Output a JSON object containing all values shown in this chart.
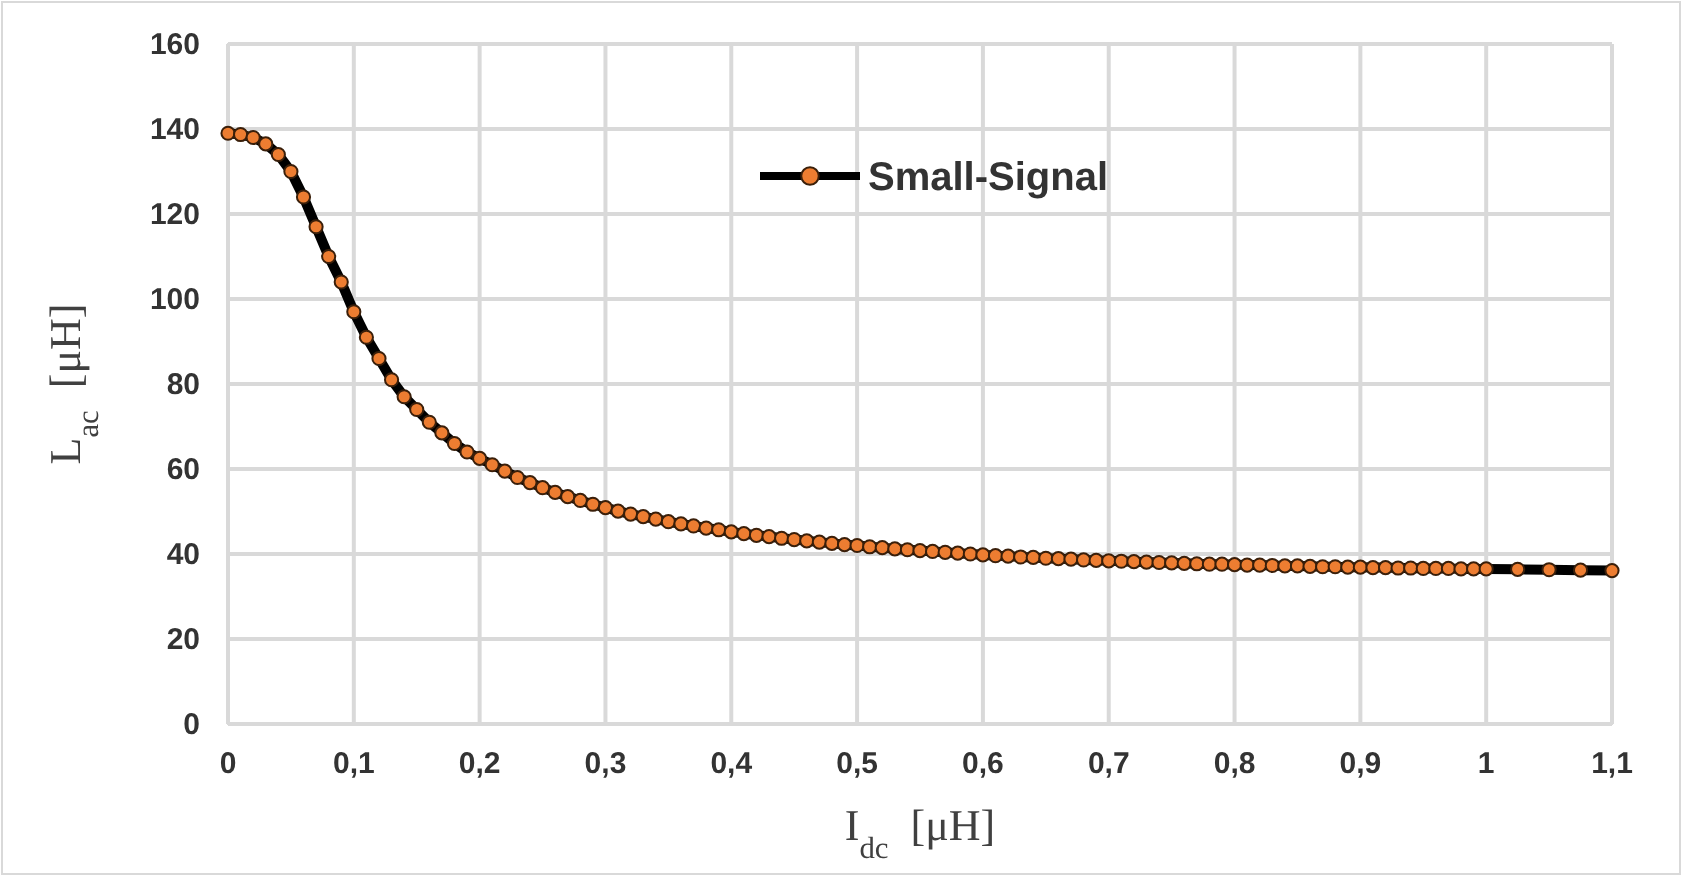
{
  "chart_data": {
    "type": "line",
    "xlabel": "I$_{dc}$  [μH]",
    "ylabel": "L$_{ac}$  [μH]",
    "xlim": [
      0,
      1.1
    ],
    "ylim": [
      0,
      160
    ],
    "xticks": [
      0,
      {
        "value": 0.1,
        "label": "0,1"
      },
      {
        "value": 0.2,
        "label": "0,2"
      },
      {
        "value": 0.3,
        "label": "0,3"
      },
      {
        "value": 0.4,
        "label": "0,4"
      },
      {
        "value": 0.5,
        "label": "0,5"
      },
      {
        "value": 0.6,
        "label": "0,6"
      },
      {
        "value": 0.7,
        "label": "0,7"
      },
      {
        "value": 0.8,
        "label": "0,8"
      },
      {
        "value": 0.9,
        "label": "0,9"
      },
      1,
      {
        "value": 1.1,
        "label": "1,1"
      }
    ],
    "yticks": [
      0,
      20,
      40,
      60,
      80,
      100,
      120,
      140,
      160
    ],
    "grid": true,
    "legend": "top",
    "marker": "circle",
    "line_style": "solid",
    "x": [
      0,
      0.01,
      0.02,
      0.03,
      0.04,
      0.05,
      0.06,
      0.07,
      0.08,
      0.09,
      0.1,
      0.11,
      0.12,
      0.13,
      0.14,
      0.15,
      0.16,
      0.17,
      0.18,
      0.19,
      0.2,
      0.21,
      0.22,
      0.23,
      0.24,
      0.25,
      0.26,
      0.27,
      0.28,
      0.29,
      0.3,
      0.31,
      0.32,
      0.33,
      0.34,
      0.35,
      0.36,
      0.37,
      0.38,
      0.39,
      0.4,
      0.41,
      0.42,
      0.43,
      0.44,
      0.45,
      0.46,
      0.47,
      0.48,
      0.49,
      0.5,
      0.51,
      0.52,
      0.53,
      0.54,
      0.55,
      0.56,
      0.57,
      0.58,
      0.59,
      0.6,
      0.61,
      0.62,
      0.63,
      0.64,
      0.65,
      0.66,
      0.67,
      0.68,
      0.69,
      0.7,
      0.71,
      0.72,
      0.73,
      0.74,
      0.75,
      0.76,
      0.77,
      0.78,
      0.79,
      0.8,
      0.81,
      0.82,
      0.83,
      0.84,
      0.85,
      0.86,
      0.87,
      0.88,
      0.89,
      0.9,
      0.91,
      0.92,
      0.93,
      0.94,
      0.95,
      0.96,
      0.97,
      0.98,
      0.99,
      1,
      1.025,
      1.05,
      1.075,
      1.1
    ],
    "series": [
      {
        "name": "Small-Signal",
        "color": "#ed7d31",
        "values": [
          139,
          138.7,
          138,
          136.5,
          134,
          130,
          124,
          117,
          110,
          104,
          97,
          91,
          86,
          81,
          77,
          74,
          71,
          68.5,
          66,
          64,
          62.5,
          61,
          59.5,
          58,
          56.8,
          55.6,
          54.5,
          53.5,
          52.6,
          51.7,
          50.9,
          50.1,
          49.4,
          48.8,
          48.2,
          47.6,
          47.1,
          46.6,
          46.1,
          45.7,
          45.2,
          44.8,
          44.4,
          44.1,
          43.7,
          43.4,
          43.1,
          42.8,
          42.5,
          42.2,
          42,
          41.7,
          41.5,
          41.2,
          41,
          40.8,
          40.6,
          40.4,
          40.2,
          40,
          39.8,
          39.6,
          39.5,
          39.3,
          39.2,
          39,
          38.9,
          38.8,
          38.6,
          38.5,
          38.4,
          38.3,
          38.2,
          38.1,
          38,
          37.9,
          37.8,
          37.7,
          37.6,
          37.6,
          37.5,
          37.4,
          37.4,
          37.3,
          37.2,
          37.2,
          37.1,
          37,
          37,
          36.9,
          36.9,
          36.8,
          36.8,
          36.7,
          36.7,
          36.6,
          36.6,
          36.6,
          36.5,
          36.5,
          36.5,
          36.4,
          36.3,
          36.2,
          36.1
        ]
      }
    ]
  }
}
